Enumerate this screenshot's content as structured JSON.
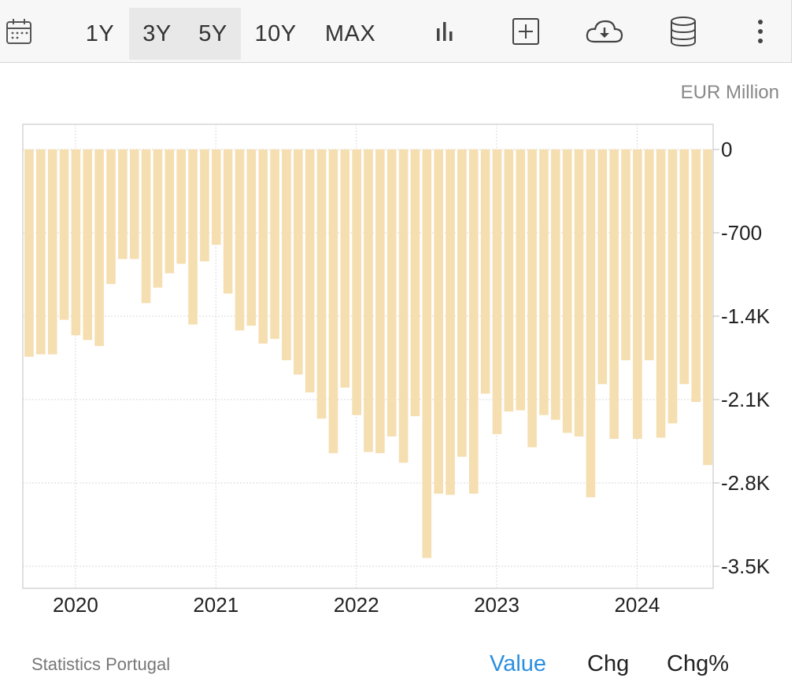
{
  "toolbar": {
    "ranges": [
      {
        "label": "1Y",
        "active": false
      },
      {
        "label": "3Y",
        "active": true
      },
      {
        "label": "5Y",
        "active": true
      },
      {
        "label": "10Y",
        "active": false
      },
      {
        "label": "MAX",
        "active": false
      }
    ],
    "icons": [
      "calendar-icon",
      "bar-chart-icon",
      "add-box-icon",
      "cloud-download-icon",
      "database-icon",
      "more-vertical-icon"
    ]
  },
  "unit_label": "EUR Million",
  "footer": {
    "source": "Statistics Portugal",
    "tabs": [
      {
        "label": "Value",
        "active": true
      },
      {
        "label": "Chg",
        "active": false
      },
      {
        "label": "Chg%",
        "active": false
      }
    ]
  },
  "colors": {
    "bar": "#f5deb0",
    "accent": "#2b8fe0",
    "grid": "#d9d9d9"
  },
  "chart_data": {
    "type": "bar",
    "ylabel": "EUR Million",
    "ylim": [
      -3700,
      200
    ],
    "yticks": [
      0,
      -700,
      -1400,
      -2100,
      -2800,
      -3500
    ],
    "ytick_labels": [
      "0",
      "-700",
      "-1.4K",
      "-2.1K",
      "-2.8K",
      "-3.5K"
    ],
    "xticks": [
      "2020",
      "2021",
      "2022",
      "2023",
      "2024"
    ],
    "start": {
      "year": 2019,
      "month": 9
    },
    "grid": true,
    "values": [
      -1740,
      -1720,
      -1720,
      -1430,
      -1560,
      -1600,
      -1650,
      -1130,
      -920,
      -920,
      -1290,
      -1160,
      -1040,
      -960,
      -1470,
      -940,
      -800,
      -1210,
      -1520,
      -1480,
      -1630,
      -1590,
      -1770,
      -1890,
      -2040,
      -2260,
      -2550,
      -2000,
      -2230,
      -2540,
      -2550,
      -2410,
      -2630,
      -2240,
      -3430,
      -2890,
      -2900,
      -2580,
      -2890,
      -2050,
      -2390,
      -2200,
      -2190,
      -2500,
      -2230,
      -2270,
      -2380,
      -2410,
      -2920,
      -1970,
      -2430,
      -1770,
      -2430,
      -1770,
      -2420,
      -2300,
      -1970,
      -2120,
      -2650
    ]
  }
}
